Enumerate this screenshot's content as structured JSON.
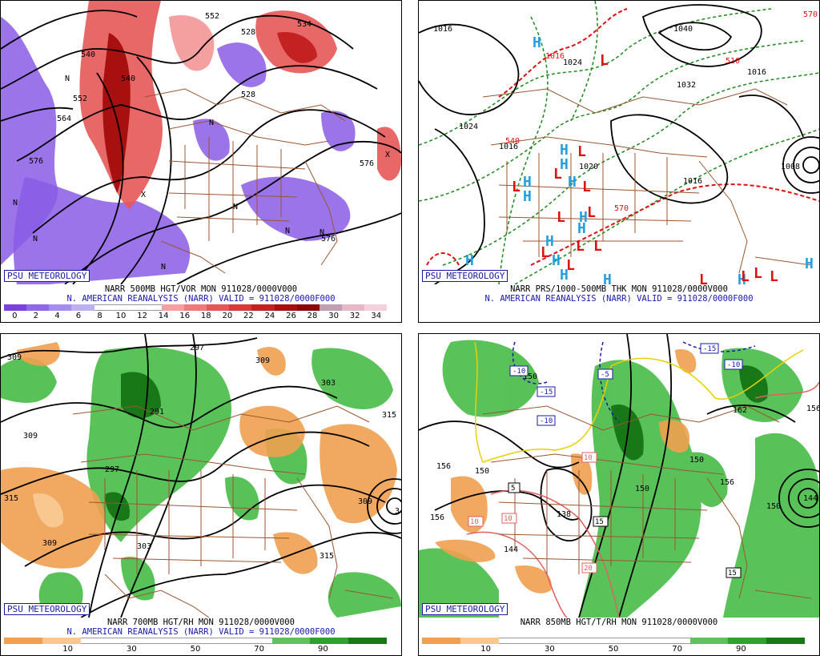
{
  "badge": "PSU METEOROLOGY",
  "panels": {
    "p1": {
      "caption1": "NARR 500MB HGT/VOR MON 911028/0000V000",
      "caption2": "N. AMERICAN REANALYSIS (NARR) VALID = 911028/0000F000",
      "colorbar_ticks": [
        "0",
        "2",
        "4",
        "6",
        "8",
        "10",
        "12",
        "14",
        "16",
        "18",
        "20",
        "22",
        "24",
        "26",
        "28",
        "30",
        "32",
        "34"
      ],
      "colorbar_colors": [
        "#7b3fe0",
        "#9068e6",
        "#a48eec",
        "#bcb0f2",
        "#ffffff",
        "#ffffff",
        "#ffffff",
        "#f4a0a0",
        "#ee7b7b",
        "#e55858",
        "#d83a3a",
        "#c42222",
        "#a81010",
        "#8c0808",
        "#c0a0b0",
        "#e8b8c8",
        "#f4d0dc"
      ],
      "contour_labels": [
        "552",
        "528",
        "576",
        "564",
        "540",
        "576",
        "576",
        "534",
        "528",
        "552",
        "540"
      ],
      "markers": [
        "N",
        "N",
        "N",
        "N",
        "N",
        "N",
        "N",
        "N",
        "X",
        "X"
      ]
    },
    "p2": {
      "caption1": "NARR PRS/1000-500MB THK MON 911028/0000V000",
      "caption2": "N. AMERICAN REANALYSIS (NARR) VALID = 911028/0000F000",
      "contour_labels": [
        "1016",
        "1024",
        "1040",
        "1016",
        "1032",
        "1024",
        "1016",
        "1016",
        "1008",
        "570",
        "540",
        "510",
        "570",
        "1016",
        "1020"
      ],
      "highs": [
        "H",
        "H",
        "H",
        "H",
        "H",
        "H",
        "H",
        "H",
        "H",
        "H",
        "H",
        "H",
        "H",
        "H",
        "H"
      ],
      "lows": [
        "L",
        "L",
        "L",
        "L",
        "L",
        "L",
        "L",
        "L",
        "L",
        "L",
        "L",
        "L",
        "L",
        "L",
        "L"
      ]
    },
    "p3": {
      "caption1": "NARR 700MB HGT/RH MON 911028/0000V000",
      "caption2": "N. AMERICAN REANALYSIS (NARR) VALID = 911028/0000F000",
      "colorbar_ticks": [
        "10",
        "30",
        "50",
        "70",
        "90"
      ],
      "colorbar_colors": [
        "#f0a050",
        "#f8c890",
        "#ffffff",
        "#ffffff",
        "#ffffff",
        "#ffffff",
        "#ffffff",
        "#60c060",
        "#30a030",
        "#187818"
      ],
      "contour_labels": [
        "309",
        "297",
        "291",
        "309",
        "303",
        "315",
        "297",
        "315",
        "309",
        "309",
        "303",
        "315",
        "309",
        "3"
      ]
    },
    "p4": {
      "caption1": "NARR 850MB HGT/T/RH MON 911028/0000V000",
      "colorbar_ticks": [
        "10",
        "30",
        "50",
        "70",
        "90"
      ],
      "colorbar_colors": [
        "#f0a050",
        "#f8c890",
        "#ffffff",
        "#ffffff",
        "#ffffff",
        "#ffffff",
        "#ffffff",
        "#60c060",
        "#30a030",
        "#187818"
      ],
      "contour_labels": [
        "150",
        "156",
        "150",
        "138",
        "150",
        "156",
        "150",
        "144",
        "156",
        "162",
        "144",
        "150",
        "156"
      ],
      "temp_labels": [
        "-15",
        "-10",
        "-10",
        "-5",
        "-15",
        "-10",
        "10",
        "5",
        "10",
        "10",
        "15",
        "20",
        "15",
        "0",
        "5",
        "5"
      ]
    }
  },
  "colors": {
    "vort_neg": "#8a5ce6",
    "vort_pos": "#d83a3a",
    "rh_moist": "#3cb83c",
    "rh_dry": "#f0a050",
    "border": "#9a5530",
    "thickness": "#1a8a1a",
    "thickness_warm": "#e01010",
    "high": "#22a0e0",
    "low": "#e01010",
    "temp_cold": "#1a1aa8",
    "temp_zero": "#e8d000",
    "temp_warm": "#e06060"
  }
}
